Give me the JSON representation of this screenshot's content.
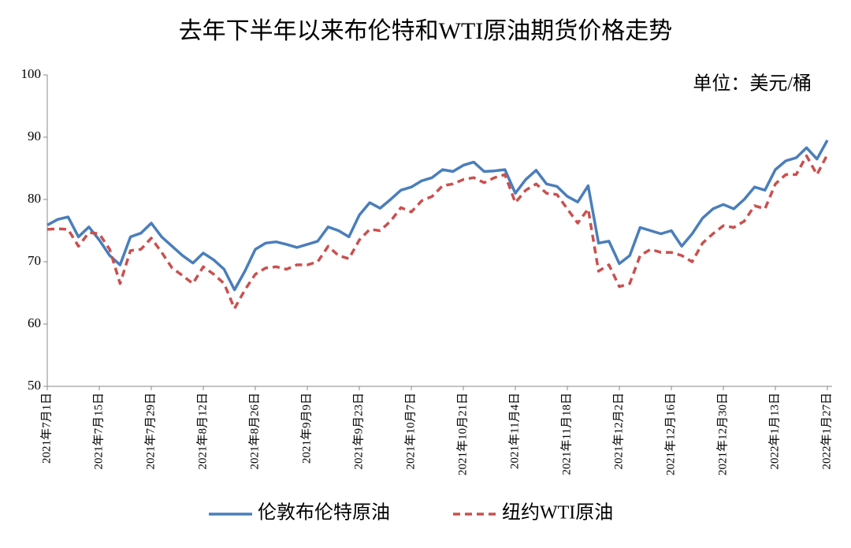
{
  "chart_data": {
    "type": "line",
    "title": "去年下半年以来布伦特和WTI原油期货价格走势",
    "annotation": "单位：美元/桶",
    "categories": [
      "2021年7月1日",
      null,
      null,
      null,
      null,
      "2021年7月15日",
      null,
      null,
      null,
      null,
      "2021年7月29日",
      null,
      null,
      null,
      null,
      "2021年8月12日",
      null,
      null,
      null,
      null,
      "2021年8月26日",
      null,
      null,
      null,
      null,
      "2021年9月9日",
      null,
      null,
      null,
      null,
      "2021年9月23日",
      null,
      null,
      null,
      null,
      "2021年10月7日",
      null,
      null,
      null,
      null,
      "2021年10月21日",
      null,
      null,
      null,
      null,
      "2021年11月4日",
      null,
      null,
      null,
      null,
      "2021年11月18日",
      null,
      null,
      null,
      null,
      "2021年12月2日",
      null,
      null,
      null,
      null,
      "2021年12月16日",
      null,
      null,
      null,
      null,
      "2021年12月30日",
      null,
      null,
      null,
      null,
      "2022年1月13日",
      null,
      null,
      null,
      null,
      "2022年1月27日"
    ],
    "series": [
      {
        "name": "伦敦布伦特原油",
        "color": "#4a7ebb",
        "dash": false,
        "values": [
          75.9,
          76.8,
          77.2,
          74,
          75.6,
          73.5,
          71,
          69.5,
          74,
          74.6,
          76.2,
          74,
          72.5,
          71,
          69.8,
          71.4,
          70.3,
          68.8,
          65.5,
          68.5,
          72,
          73,
          73.2,
          72.8,
          72.3,
          72.8,
          73.3,
          75.6,
          75,
          74,
          77.5,
          79.5,
          78.6,
          80,
          81.5,
          82,
          83,
          83.5,
          84.8,
          84.5,
          85.5,
          86,
          84.5,
          84.6,
          84.8,
          81,
          83.2,
          84.7,
          82.5,
          82.1,
          80.5,
          79.6,
          82.2,
          73,
          73.3,
          69.7,
          71,
          75.5,
          75,
          74.5,
          75,
          72.5,
          74.5,
          77,
          78.5,
          79.2,
          78.5,
          80,
          82,
          81.5,
          84.8,
          86.2,
          86.7,
          88.3,
          86.5,
          89.5
        ]
      },
      {
        "name": "纽约WTI原油",
        "color": "#c9504f",
        "dash": true,
        "values": [
          75.2,
          75.3,
          75.2,
          72.5,
          74.7,
          74.5,
          72,
          66.5,
          71.8,
          72,
          73.8,
          71.5,
          69,
          67.8,
          66.5,
          69.2,
          68,
          66.5,
          62.5,
          65.5,
          68,
          69,
          69.2,
          68.8,
          69.5,
          69.5,
          70,
          72.5,
          71,
          70.5,
          73.5,
          75.2,
          75,
          76.5,
          78.7,
          78,
          79.8,
          80.5,
          82.2,
          82.5,
          83.2,
          83.5,
          82.7,
          83.5,
          84,
          79.5,
          81.5,
          82.5,
          81,
          80.8,
          78.5,
          76.2,
          78.5,
          68.5,
          69.5,
          66,
          66.5,
          71,
          72,
          71.5,
          71.5,
          71,
          70,
          73,
          74.5,
          75.8,
          75.5,
          76.5,
          79,
          78.5,
          82.5,
          84,
          84,
          87,
          84,
          87.2
        ]
      }
    ],
    "ylim": [
      50,
      100
    ],
    "yticks": [
      50,
      60,
      70,
      80,
      90,
      100
    ],
    "grid": false,
    "legend": "bottom"
  }
}
